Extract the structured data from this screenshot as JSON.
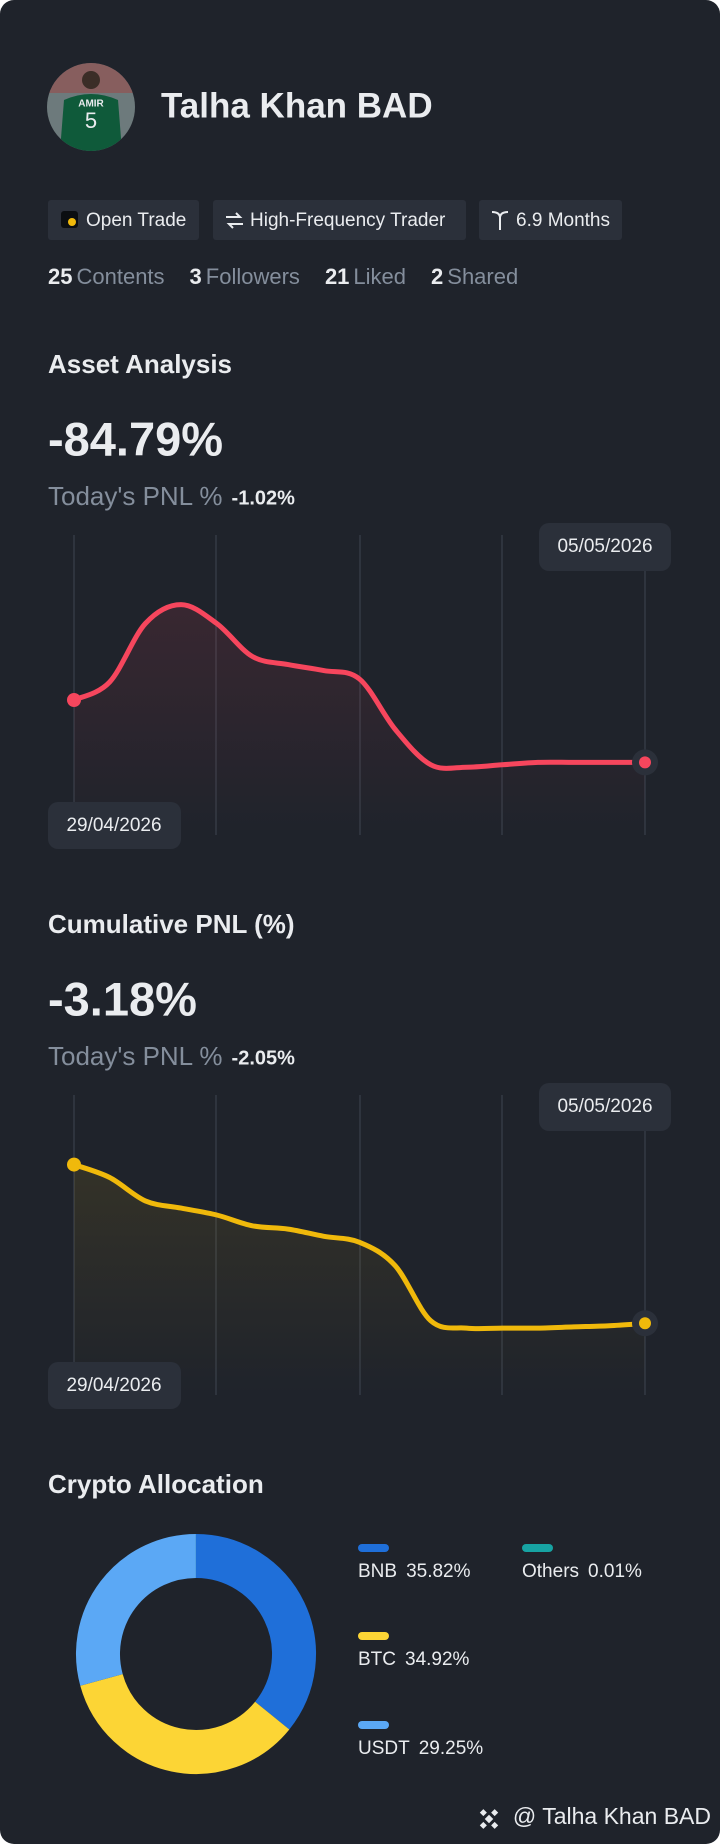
{
  "profile": {
    "name": "Talha Khan BAD",
    "avatar": {
      "jersey_name": "AMIR",
      "jersey_number": "5"
    },
    "tags": [
      "Open Trade",
      "High-Frequency Trader",
      "6.9 Months"
    ],
    "stats": [
      {
        "count": "25",
        "label": "Contents"
      },
      {
        "count": "3",
        "label": "Followers"
      },
      {
        "count": "21",
        "label": "Liked"
      },
      {
        "count": "2",
        "label": "Shared"
      }
    ]
  },
  "asset_analysis": {
    "title": "Asset Analysis",
    "value": "-84.79%",
    "today_label": "Today's PNL %",
    "today_value": "-1.02%",
    "chart": {
      "type": "line",
      "color": "#f6465d",
      "start_date": "29/04/2026",
      "end_date": "05/05/2026",
      "ylim": [
        0,
        100
      ],
      "values": [
        45,
        51,
        70.5,
        76.8,
        70.5,
        59.5,
        56.8,
        54.8,
        52,
        35.2,
        23.4,
        22.6,
        23.4,
        24.2,
        24.2,
        24.2,
        24.2
      ]
    }
  },
  "cumulative_pnl": {
    "title": "Cumulative PNL (%)",
    "value": "-3.18%",
    "today_label": "Today's PNL %",
    "today_value": "-2.05%",
    "chart": {
      "type": "line",
      "color": "#f0b90b",
      "start_date": "29/04/2026",
      "end_date": "05/05/2026",
      "ylim": [
        0,
        100
      ],
      "values": [
        76.8,
        72.5,
        64.7,
        62.3,
        60,
        56.4,
        55.3,
        52.9,
        50.9,
        43.1,
        24.7,
        22.3,
        22.3,
        22.3,
        22.7,
        23.1,
        23.9
      ]
    }
  },
  "crypto_allocation": {
    "title": "Crypto Allocation",
    "type": "donut",
    "categories": [
      "BNB",
      "BTC",
      "USDT",
      "Others"
    ],
    "values": [
      35.82,
      34.92,
      29.25,
      0.01
    ],
    "value_labels": [
      "35.82%",
      "34.92%",
      "29.25%",
      "0.01%"
    ],
    "colors": [
      "#1f6fd9",
      "#fcd535",
      "#5ba8f5",
      "#17a3a3"
    ]
  },
  "footer": "@ Talha Khan BAD"
}
